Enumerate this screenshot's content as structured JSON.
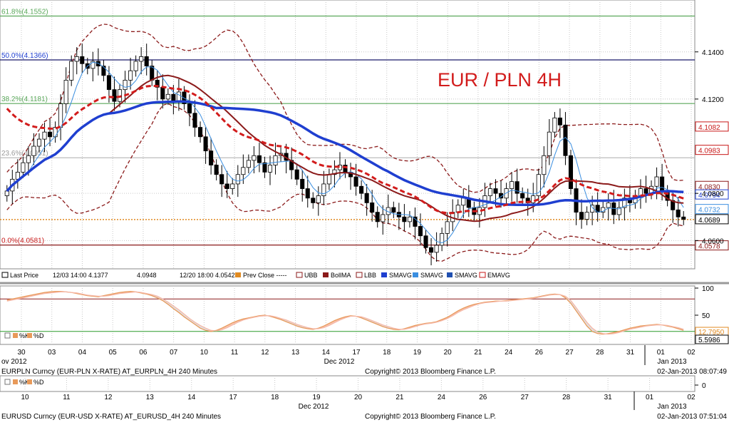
{
  "chart_data": [
    {
      "type": "candlestick",
      "title": "EUR / PLN 4H",
      "symbol_line": "EURPLN Curncy (EUR-PLN X-RATE) AT_EURPLN_4H  240 Minutes",
      "copyright": "Copyright© 2013 Bloomberg Finance L.P.",
      "timestamp": "02-Jan-2013 08:07:49",
      "x_tick_labels": [
        "30",
        "03",
        "04",
        "05",
        "06",
        "07",
        "10",
        "11",
        "12",
        "13",
        "14",
        "17",
        "18",
        "19",
        "20",
        "21",
        "24",
        "26",
        "27",
        "28",
        "31",
        "01",
        "02"
      ],
      "x_month_labels": [
        "ov 2012",
        "Dec 2012",
        "Jan 2013"
      ],
      "y_tick_labels": [
        "4.1400",
        "4.1200",
        "4.0800",
        "4.0600"
      ],
      "ylim": [
        4.048,
        4.162
      ],
      "fib_levels": [
        {
          "label": "61.8%(4.1552)",
          "value": 4.1552
        },
        {
          "label": "50.0%(4.1366)",
          "value": 4.1366
        },
        {
          "label": "38.2%(4.1181)",
          "value": 4.1181
        },
        {
          "label": "23.6%(4.0951)",
          "value": 4.0951
        },
        {
          "label": "0.0%(4.0581)",
          "value": 4.0581
        }
      ],
      "prev_close": 4.0689,
      "price_tags": [
        {
          "label": "4.1082",
          "value": 4.1082,
          "color": "#c81818"
        },
        {
          "label": "4.0983",
          "value": 4.0983,
          "color": "#c81818"
        },
        {
          "label": "4.0830",
          "value": 4.083,
          "color": "#8b1a1a"
        },
        {
          "label": "4.0794",
          "value": 4.0794,
          "color": "#1f3fd0"
        },
        {
          "label": "4.0732",
          "value": 4.0732,
          "color": "#3a8ee0"
        },
        {
          "label": "4.0689",
          "value": 4.0689,
          "color": "#000000"
        },
        {
          "label": "4.0578",
          "value": 4.0578,
          "color": "#8b1a1a"
        }
      ],
      "legend": {
        "last_price_label": "Last Price",
        "hi_label": "12/03 14:00 4.1377",
        "mid_label": "4.0948",
        "lo_label": "12/20 18:00 4.0542",
        "items": [
          "Prev Close -----",
          "UBB",
          "BollMA",
          "LBB",
          "SMAVG",
          "SMAVG",
          "SMAVG",
          "EMAVG"
        ]
      },
      "closes": [
        4.081,
        4.086,
        4.089,
        4.093,
        4.096,
        4.1,
        4.103,
        4.106,
        4.104,
        4.108,
        4.118,
        4.128,
        4.136,
        4.138,
        4.135,
        4.133,
        4.136,
        4.134,
        4.13,
        4.124,
        4.119,
        4.124,
        4.128,
        4.132,
        4.136,
        4.138,
        4.134,
        4.128,
        4.125,
        4.12,
        4.122,
        4.119,
        4.123,
        4.118,
        4.114,
        4.108,
        4.104,
        4.098,
        4.092,
        4.088,
        4.084,
        4.082,
        4.084,
        4.088,
        4.091,
        4.094,
        4.096,
        4.093,
        4.089,
        4.092,
        4.096,
        4.097,
        4.094,
        4.09,
        4.086,
        4.082,
        4.078,
        4.076,
        4.079,
        4.084,
        4.088,
        4.09,
        4.092,
        4.089,
        4.087,
        4.083,
        4.08,
        4.076,
        4.072,
        4.068,
        4.071,
        4.074,
        4.072,
        4.07,
        4.068,
        4.07,
        4.066,
        4.062,
        4.057,
        4.055,
        4.058,
        4.063,
        4.068,
        4.072,
        4.075,
        4.078,
        4.074,
        4.071,
        4.074,
        4.079,
        4.082,
        4.08,
        4.078,
        4.082,
        4.085,
        4.08,
        4.078,
        4.076,
        4.079,
        4.088,
        4.096,
        4.106,
        4.112,
        4.109,
        4.096,
        4.082,
        4.072,
        4.069,
        4.072,
        4.075,
        4.072,
        4.074,
        4.076,
        4.071,
        4.074,
        4.078,
        4.076,
        4.079,
        4.082,
        4.08,
        4.083,
        4.087,
        4.081,
        4.077,
        4.073,
        4.07,
        4.069
      ]
    },
    {
      "type": "line",
      "title": "",
      "y_tick_labels": [
        "100",
        "50"
      ],
      "ylim": [
        0,
        100
      ],
      "levels": [
        80,
        20
      ],
      "price_tags": [
        {
          "label": "12.7950",
          "value": 12.795,
          "color": "#e08a20"
        },
        {
          "label": "5.5986",
          "value": 5.5986,
          "color": "#000000"
        }
      ],
      "series": [
        {
          "name": "%K",
          "color": "#e89a5a",
          "values": [
            78,
            80,
            82,
            84,
            86,
            88,
            90,
            92,
            93,
            94,
            94,
            93,
            92,
            90,
            88,
            86,
            85,
            84,
            86,
            88,
            90,
            92,
            93,
            94,
            93,
            91,
            89,
            86,
            82,
            77,
            70,
            62,
            55,
            47,
            40,
            33,
            26,
            22,
            20,
            22,
            26,
            31,
            36,
            40,
            43,
            45,
            47,
            49,
            50,
            48,
            45,
            42,
            38,
            34,
            30,
            27,
            25,
            24,
            26,
            30,
            35,
            40,
            44,
            47,
            49,
            48,
            45,
            41,
            37,
            33,
            29,
            26,
            24,
            23,
            25,
            28,
            31,
            33,
            35,
            36,
            38,
            42,
            46,
            52,
            58,
            63,
            67,
            70,
            72,
            74,
            75,
            76,
            76,
            77,
            78,
            79,
            80,
            81,
            82,
            84,
            86,
            88,
            89,
            88,
            82,
            72,
            58,
            44,
            30,
            20,
            16,
            15,
            16,
            18,
            20,
            23,
            26,
            28,
            30,
            31,
            32,
            33,
            32,
            30,
            28,
            25,
            22
          ]
        },
        {
          "name": "%D",
          "color": "#f5b8a8",
          "values": [
            76,
            78,
            80,
            82,
            84,
            86,
            88,
            90,
            91,
            92,
            93,
            93,
            92,
            91,
            89,
            87,
            86,
            85,
            85,
            86,
            88,
            90,
            91,
            92,
            93,
            92,
            90,
            88,
            85,
            80,
            74,
            67,
            60,
            52,
            44,
            37,
            31,
            26,
            22,
            21,
            23,
            27,
            32,
            37,
            41,
            44,
            46,
            48,
            49,
            49,
            47,
            44,
            41,
            37,
            33,
            30,
            27,
            25,
            25,
            27,
            31,
            36,
            41,
            45,
            48,
            48,
            47,
            44,
            40,
            36,
            32,
            29,
            26,
            24,
            24,
            26,
            29,
            32,
            34,
            35,
            37,
            40,
            44,
            49,
            55,
            60,
            64,
            68,
            71,
            73,
            74,
            75,
            76,
            76,
            77,
            78,
            79,
            80,
            81,
            83,
            85,
            87,
            88,
            88,
            85,
            77,
            64,
            50,
            37,
            26,
            19,
            16,
            15,
            16,
            18,
            21,
            24,
            26,
            28,
            30,
            31,
            32,
            32,
            31,
            29,
            27,
            24
          ]
        }
      ],
      "legend": [
        "%K",
        "%D"
      ]
    },
    {
      "type": "line",
      "title": "",
      "symbol_line": "EURUSD Curncy (EUR-USD X-RATE) AT_EURUSD_4H  240 Minutes",
      "copyright": "Copyright© 2013 Bloomberg Finance L.P.",
      "timestamp": "02-Jan-2013 07:51:04",
      "x_tick_labels": [
        "10",
        "11",
        "12",
        "13",
        "14",
        "17",
        "18",
        "19",
        "20",
        "21",
        "24",
        "26",
        "27",
        "28",
        "31",
        "01",
        "02"
      ],
      "x_month_labels": [
        "Dec 2012",
        "Jan 2013"
      ],
      "y_tick_labels": [
        "0"
      ],
      "legend": [
        "%K",
        "%D"
      ]
    }
  ]
}
